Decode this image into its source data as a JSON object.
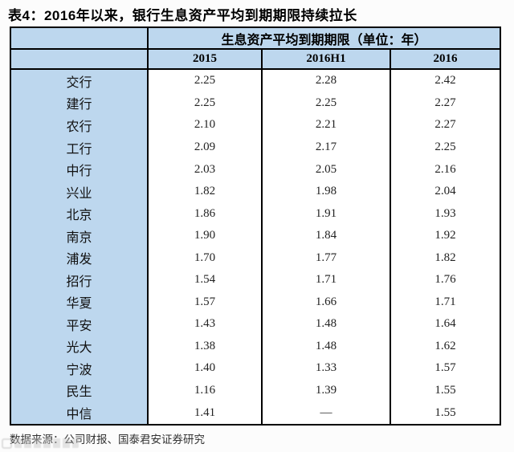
{
  "page": {
    "title": "表4：2016年以来，银行生息资产平均到期期限持续拉长"
  },
  "table": {
    "merged_header": "生息资产平均到期期限（单位：年）",
    "columns": [
      "2015",
      "2016H1",
      "2016"
    ],
    "rows": [
      {
        "bank": "交行",
        "values": [
          "2.25",
          "2.28",
          "2.42"
        ]
      },
      {
        "bank": "建行",
        "values": [
          "2.25",
          "2.25",
          "2.27"
        ]
      },
      {
        "bank": "农行",
        "values": [
          "2.10",
          "2.21",
          "2.27"
        ]
      },
      {
        "bank": "工行",
        "values": [
          "2.09",
          "2.17",
          "2.25"
        ]
      },
      {
        "bank": "中行",
        "values": [
          "2.03",
          "2.05",
          "2.16"
        ]
      },
      {
        "bank": "兴业",
        "values": [
          "1.82",
          "1.98",
          "2.04"
        ]
      },
      {
        "bank": "北京",
        "values": [
          "1.86",
          "1.91",
          "1.93"
        ]
      },
      {
        "bank": "南京",
        "values": [
          "1.90",
          "1.84",
          "1.92"
        ]
      },
      {
        "bank": "浦发",
        "values": [
          "1.70",
          "1.77",
          "1.82"
        ]
      },
      {
        "bank": "招行",
        "values": [
          "1.54",
          "1.71",
          "1.76"
        ]
      },
      {
        "bank": "华夏",
        "values": [
          "1.57",
          "1.66",
          "1.71"
        ]
      },
      {
        "bank": "平安",
        "values": [
          "1.43",
          "1.48",
          "1.64"
        ]
      },
      {
        "bank": "光大",
        "values": [
          "1.38",
          "1.48",
          "1.62"
        ]
      },
      {
        "bank": "宁波",
        "values": [
          "1.40",
          "1.33",
          "1.57"
        ]
      },
      {
        "bank": "民生",
        "values": [
          "1.16",
          "1.39",
          "1.55"
        ]
      },
      {
        "bank": "中信",
        "values": [
          "1.41",
          "—",
          "1.55"
        ]
      }
    ]
  },
  "footer": {
    "source": "数据来源：公司财报、国泰君安证券研究",
    "watermark": "illegible-gray-site-logo"
  },
  "colors": {
    "header_fill": "#bdd7ee",
    "border": "#000000",
    "title_text": "#000000",
    "value_text": "#222222",
    "source_text": "#333333"
  },
  "chart_data": {
    "type": "table",
    "title": "表4：2016年以来，银行生息资产平均到期期限持续拉长",
    "group_header": "生息资产平均到期期限（单位：年）",
    "categories": [
      "交行",
      "建行",
      "农行",
      "工行",
      "中行",
      "兴业",
      "北京",
      "南京",
      "浦发",
      "招行",
      "华夏",
      "平安",
      "光大",
      "宁波",
      "民生",
      "中信"
    ],
    "series": [
      {
        "name": "2015",
        "values": [
          2.25,
          2.25,
          2.1,
          2.09,
          2.03,
          1.82,
          1.86,
          1.9,
          1.7,
          1.54,
          1.57,
          1.43,
          1.38,
          1.4,
          1.16,
          1.41
        ]
      },
      {
        "name": "2016H1",
        "values": [
          2.28,
          2.25,
          2.21,
          2.17,
          2.05,
          1.98,
          1.91,
          1.84,
          1.77,
          1.71,
          1.66,
          1.48,
          1.48,
          1.33,
          1.39,
          null
        ]
      },
      {
        "name": "2016",
        "values": [
          2.42,
          2.27,
          2.27,
          2.25,
          2.16,
          2.04,
          1.93,
          1.92,
          1.82,
          1.76,
          1.71,
          1.64,
          1.62,
          1.57,
          1.55,
          1.55
        ]
      }
    ],
    "source": "数据来源：公司财报、国泰君安证券研究"
  }
}
